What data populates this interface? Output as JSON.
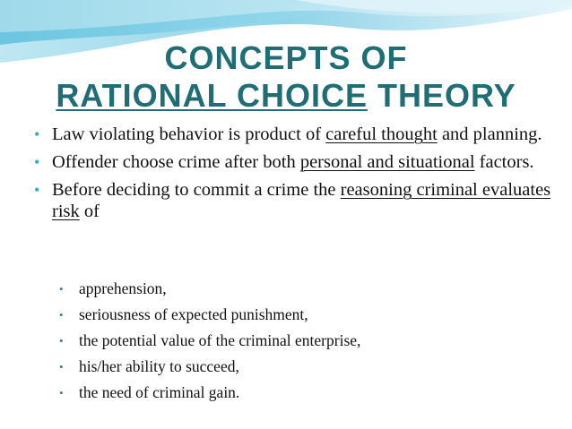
{
  "title": {
    "line1": "CONCEPTS OF",
    "line2_underlined": "RATIONAL CHOICE",
    "line2_rest": " THEORY"
  },
  "bullets": [
    {
      "a": "Law violating behavior is product of ",
      "u": "careful thought",
      "b": " and planning."
    },
    {
      "a": "Offender choose crime after both ",
      "u": "personal and situational",
      "b": " factors."
    },
    {
      "a": "Before deciding to commit a crime the ",
      "u": "reasoning criminal evaluates risk",
      "b": " of"
    }
  ],
  "sub_bullets": [
    "apprehension,",
    "seriousness of expected punishment,",
    "the potential value of the criminal enterprise,",
    "his/her ability to succeed,",
    "the need of criminal gain."
  ],
  "colors": {
    "title": "#1f6e76",
    "accent_wave": "#4fb8d6",
    "bullet": "#3aa9c0"
  }
}
